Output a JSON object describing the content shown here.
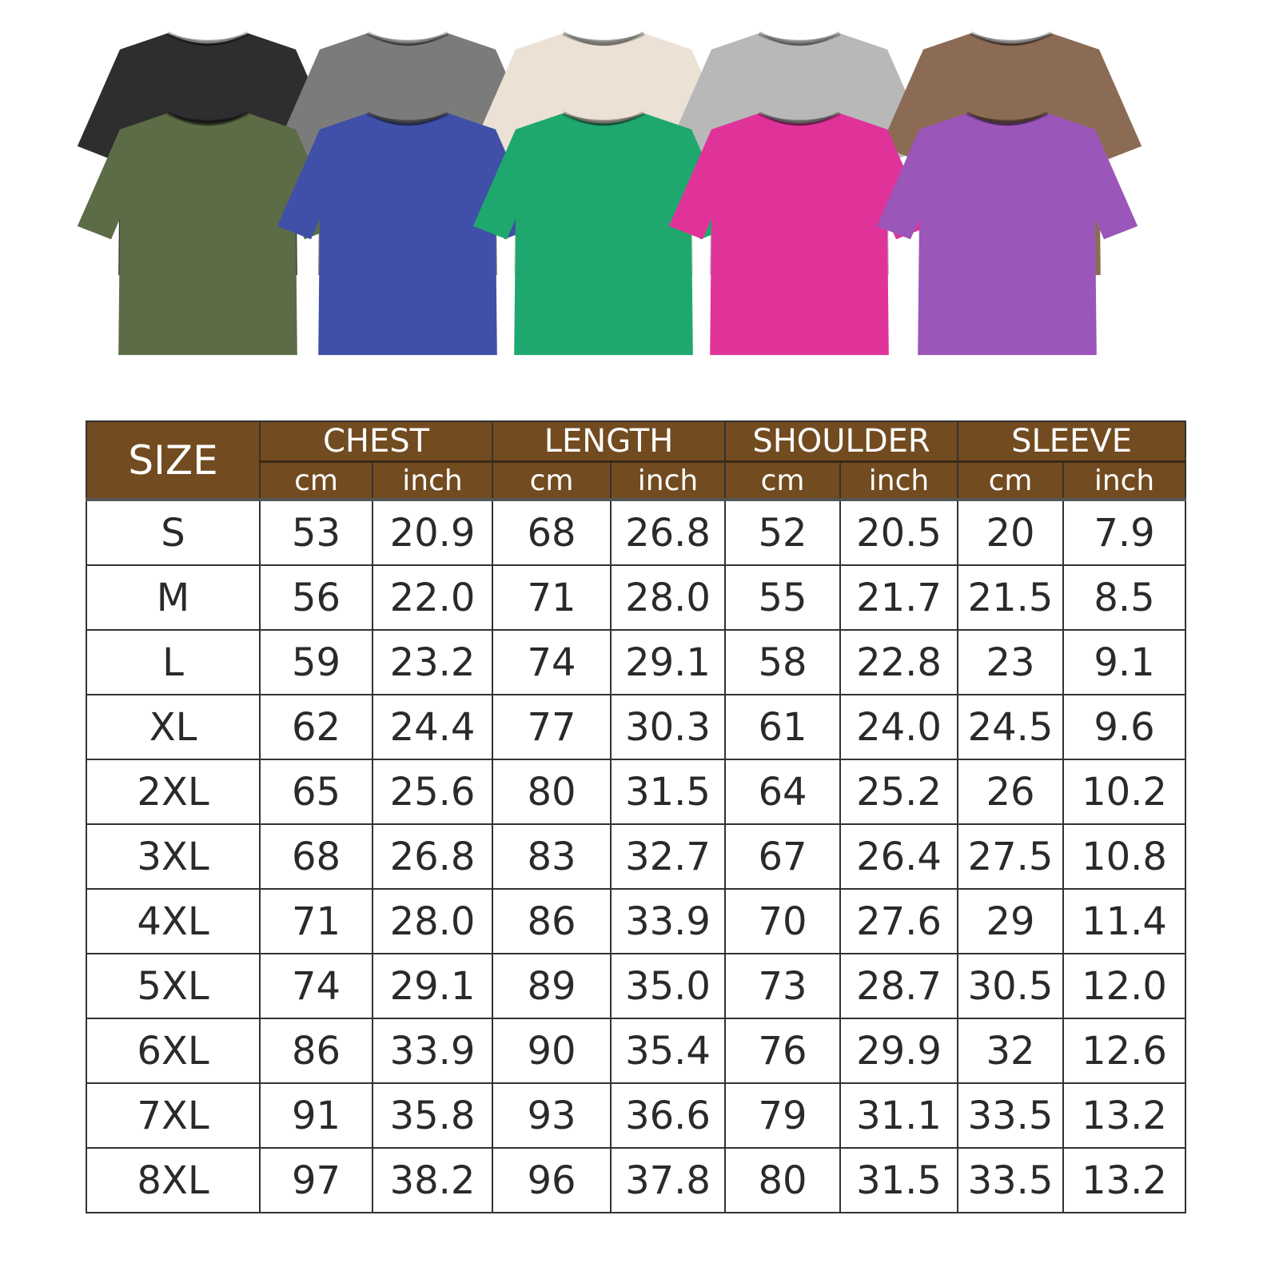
{
  "shirts": {
    "back_row": [
      {
        "color_name": "black",
        "color": "#2e2e2e"
      },
      {
        "color_name": "gray",
        "color": "#7b7b7b"
      },
      {
        "color_name": "cream",
        "color": "#ebe1d4"
      },
      {
        "color_name": "light-gray",
        "color": "#b8b8b8"
      },
      {
        "color_name": "brown",
        "color": "#8c6b55"
      }
    ],
    "front_row": [
      {
        "color_name": "olive",
        "color": "#5b6c46"
      },
      {
        "color_name": "blue",
        "color": "#4050a8"
      },
      {
        "color_name": "green",
        "color": "#1fa86d"
      },
      {
        "color_name": "pink",
        "color": "#e0339a"
      },
      {
        "color_name": "purple",
        "color": "#9a56b8"
      }
    ]
  },
  "table": {
    "header_color": "#724b20",
    "size_label": "SIZE",
    "groups": [
      "CHEST",
      "LENGTH",
      "SHOULDER",
      "SLEEVE"
    ],
    "units": [
      "cm",
      "inch"
    ],
    "rows": [
      [
        "S",
        "53",
        "20.9",
        "68",
        "26.8",
        "52",
        "20.5",
        "20",
        "7.9"
      ],
      [
        "M",
        "56",
        "22.0",
        "71",
        "28.0",
        "55",
        "21.7",
        "21.5",
        "8.5"
      ],
      [
        "L",
        "59",
        "23.2",
        "74",
        "29.1",
        "58",
        "22.8",
        "23",
        "9.1"
      ],
      [
        "XL",
        "62",
        "24.4",
        "77",
        "30.3",
        "61",
        "24.0",
        "24.5",
        "9.6"
      ],
      [
        "2XL",
        "65",
        "25.6",
        "80",
        "31.5",
        "64",
        "25.2",
        "26",
        "10.2"
      ],
      [
        "3XL",
        "68",
        "26.8",
        "83",
        "32.7",
        "67",
        "26.4",
        "27.5",
        "10.8"
      ],
      [
        "4XL",
        "71",
        "28.0",
        "86",
        "33.9",
        "70",
        "27.6",
        "29",
        "11.4"
      ],
      [
        "5XL",
        "74",
        "29.1",
        "89",
        "35.0",
        "73",
        "28.7",
        "30.5",
        "12.0"
      ],
      [
        "6XL",
        "86",
        "33.9",
        "90",
        "35.4",
        "76",
        "29.9",
        "32",
        "12.6"
      ],
      [
        "7XL",
        "91",
        "35.8",
        "93",
        "36.6",
        "79",
        "31.1",
        "33.5",
        "13.2"
      ],
      [
        "8XL",
        "97",
        "38.2",
        "96",
        "37.8",
        "80",
        "31.5",
        "33.5",
        "13.2"
      ]
    ]
  }
}
